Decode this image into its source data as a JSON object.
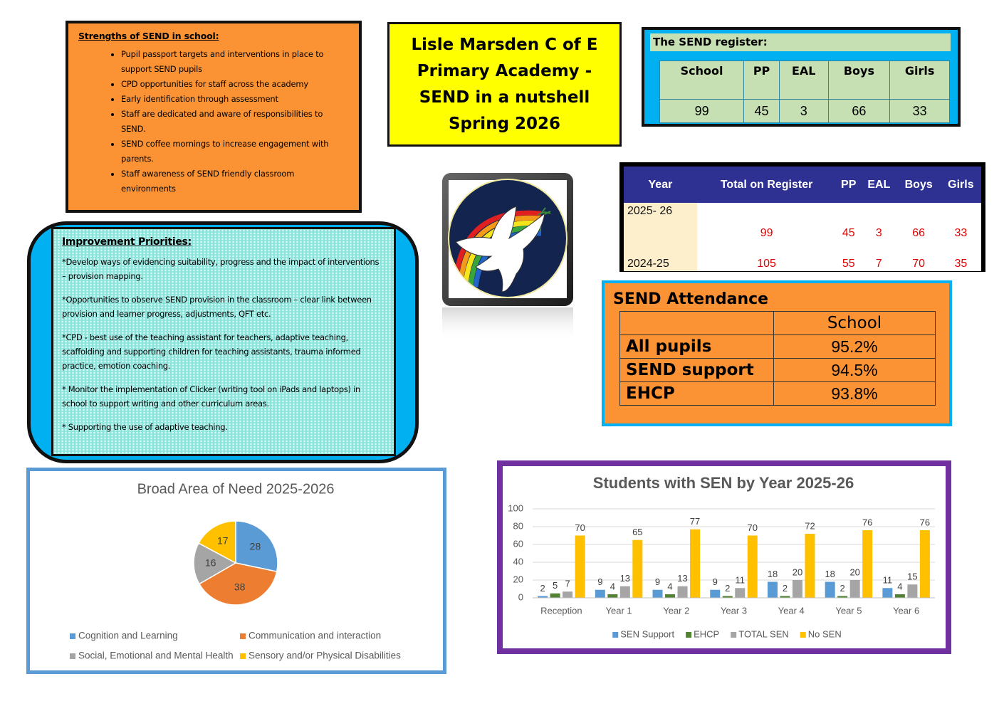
{
  "strengths": {
    "title": "Strengths of SEND in school:",
    "items": [
      "Pupil passport targets and interventions in place to support SEND pupils",
      "CPD opportunities for staff across the academy",
      "Early identification through assessment",
      "Staff are dedicated and aware of responsibilities to SEND.",
      "SEND coffee mornings to increase engagement with parents.",
      "Staff awareness of SEND friendly classroom environments"
    ]
  },
  "headline": "Lisle Marsden C of E Primary Academy - SEND in a nutshell Spring 2026",
  "send_register": {
    "title": "The SEND register:",
    "headers": [
      "School",
      "PP",
      "EAL",
      "Boys",
      "Girls"
    ],
    "values": [
      99,
      45,
      3,
      66,
      33
    ]
  },
  "register_comparison": {
    "headers": [
      "Year",
      "Total on Register",
      "PP",
      "EAL",
      "Boys",
      "Girls"
    ],
    "rows": [
      [
        "2025- 26",
        99,
        45,
        3,
        66,
        33
      ],
      [
        "2024-25",
        105,
        55,
        7,
        70,
        35
      ]
    ]
  },
  "improvement": {
    "title": "Improvement Priorities:",
    "items": [
      "*Develop ways of evidencing suitability, progress and the impact of interventions – provision mapping.",
      "*Opportunities to observe SEND provision in the classroom – clear link between provision and learner progress, adjustments, QFT etc.",
      "*CPD - best use of the teaching assistant for teachers, adaptive teaching, scaffolding and supporting children for teaching assistants, trauma informed practice, emotion coaching.",
      "* Monitor the implementation of Clicker (writing tool on iPads and laptops) in school to support writing and other curriculum areas.",
      "* Supporting the use of adaptive teaching."
    ]
  },
  "attendance": {
    "title": "SEND Attendance",
    "column": "School",
    "rows": [
      [
        "All pupils",
        "95.2%"
      ],
      [
        "SEND support",
        "94.5%"
      ],
      [
        "EHCP",
        "93.8%"
      ]
    ]
  },
  "chart_data": [
    {
      "type": "pie",
      "title": "Broad Area of Need 2025-2026",
      "categories": [
        "Cognition and Learning",
        "Communication and interaction",
        "Social, Emotional and Mental Health",
        "Sensory and/or Physical Disabilities"
      ],
      "values": [
        28,
        38,
        16,
        17
      ],
      "colors": [
        "#5b9bd5",
        "#ed7d31",
        "#a5a5a5",
        "#ffc000"
      ],
      "legend": "bottom"
    },
    {
      "type": "bar",
      "title": "Students with SEN by Year 2025-26",
      "categories": [
        "Reception",
        "Year 1",
        "Year 2",
        "Year 3",
        "Year 4",
        "Year 5",
        "Year 6"
      ],
      "series": [
        {
          "name": "SEN Support",
          "color": "#5b9bd5",
          "values": [
            2,
            9,
            9,
            9,
            18,
            18,
            11
          ]
        },
        {
          "name": "EHCP",
          "color": "#548235",
          "values": [
            5,
            4,
            4,
            2,
            2,
            2,
            4
          ]
        },
        {
          "name": "TOTAL SEN",
          "color": "#a5a5a5",
          "values": [
            7,
            13,
            13,
            11,
            20,
            20,
            15
          ]
        },
        {
          "name": "No SEN",
          "color": "#ffc000",
          "values": [
            70,
            65,
            77,
            70,
            72,
            76,
            76
          ]
        }
      ],
      "ylim": [
        0,
        100
      ],
      "yticks": [
        0,
        20,
        40,
        60,
        80,
        100
      ],
      "grid": true,
      "legend": "bottom"
    }
  ]
}
